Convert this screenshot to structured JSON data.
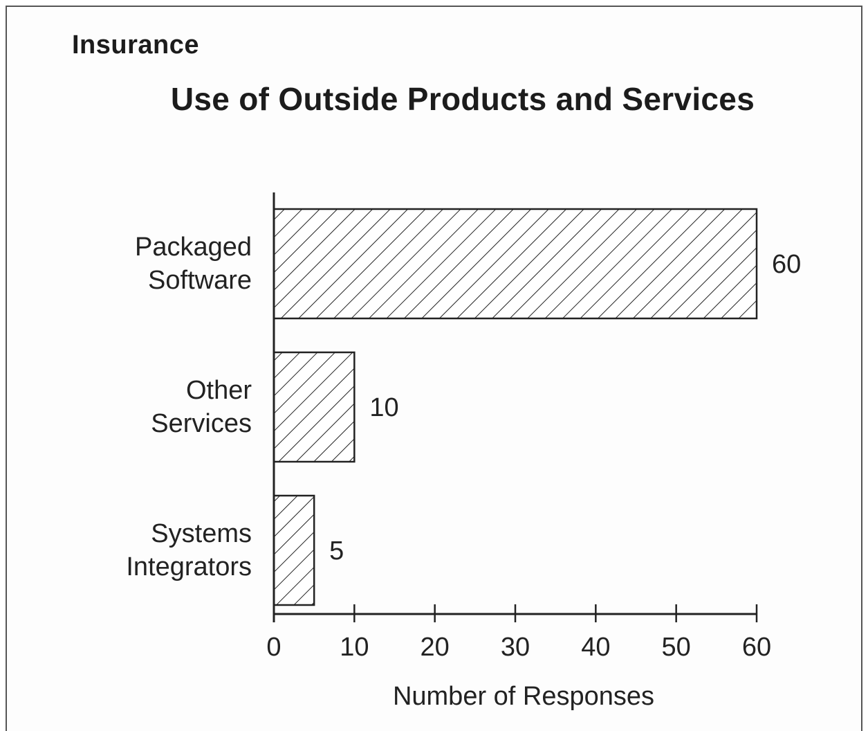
{
  "header": {
    "section": "Insurance"
  },
  "chart_data": {
    "type": "bar",
    "orientation": "horizontal",
    "title": "Use of Outside Products and Services",
    "categories": [
      [
        "Packaged",
        "Software"
      ],
      [
        "Other",
        "Services"
      ],
      [
        "Systems",
        "Integrators"
      ]
    ],
    "values": [
      60,
      10,
      5
    ],
    "value_labels": [
      "60",
      "10",
      "5"
    ],
    "xlabel": "Number of Responses",
    "ylabel": "",
    "xlim": [
      0,
      60
    ],
    "xticks": [
      0,
      10,
      20,
      30,
      40,
      50,
      60
    ],
    "grid": false,
    "legend": "none",
    "bar_fill": "diagonal-hatch",
    "bar_stroke": "#222222"
  }
}
